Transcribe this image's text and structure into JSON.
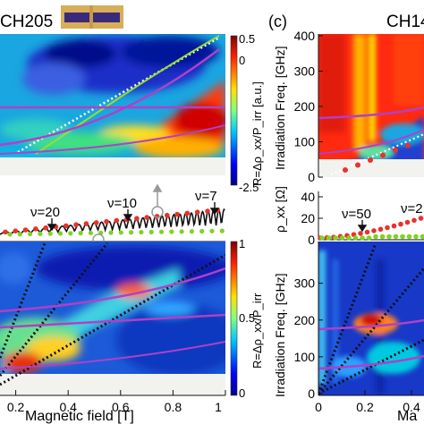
{
  "header": {
    "left_title": "CH205",
    "right_panel_label": "(c)",
    "right_title": "CH14"
  },
  "colors": {
    "guide_line_magenta": "#b040c8",
    "guide_line_green": "#9ade2a",
    "data_marker_red": "#e8322c",
    "data_marker_green": "#7ed321",
    "overlay_white_dotted": "#ffffff",
    "overlay_black_dotted": "#111111",
    "no_data_gray": "#f2f2ee"
  },
  "chart_data": [
    {
      "type": "heatmap",
      "name": "left-top-map",
      "colorbar": {
        "label": "R=Δρ_xx/P_irr [a.u.]",
        "range": [
          -2.5,
          0.5
        ],
        "ticks": [
          "0.5",
          "0",
          "-2.5"
        ],
        "colormap": "jet"
      }
    },
    {
      "type": "line",
      "name": "left-middle-oscillations",
      "series": [
        {
          "values": []
        }
      ],
      "annotations": [
        "ν=20",
        "ν=10",
        "ν=7"
      ]
    },
    {
      "type": "heatmap",
      "name": "left-bottom-map",
      "xlabel": "Magnetic field [T]",
      "x_ticks": [
        "0.2",
        "0.4",
        "0.6",
        "0.8",
        "1"
      ],
      "xlim": [
        0.14,
        1.0
      ],
      "colorbar": {
        "label": "R=Δρ_xx/P_irr",
        "range": [
          0,
          1
        ],
        "ticks": [
          "1",
          "0.5",
          "0"
        ],
        "colormap": "jet"
      }
    },
    {
      "type": "heatmap",
      "name": "right-top-map",
      "ylabel": "Irradiation Freq. [GHz]",
      "y_ticks": [
        "400",
        "300",
        "200",
        "100",
        "0"
      ],
      "ylim": [
        0,
        400
      ]
    },
    {
      "type": "line",
      "name": "right-middle-rxx",
      "ylabel": "ρ_xx [Ω]",
      "y_ticks": [
        "40",
        "20",
        "0"
      ],
      "ylim": [
        0,
        45
      ],
      "annotations": [
        "ν=50",
        "ν=2"
      ]
    },
    {
      "type": "heatmap",
      "name": "right-bottom-map",
      "ylabel": "Irradiation Freq. [GHz]",
      "xlabel": "Ma",
      "y_ticks": [
        "300",
        "200",
        "100",
        "0"
      ],
      "ylim": [
        0,
        360
      ],
      "x_ticks": [
        "0",
        "0.2",
        "0.4"
      ]
    }
  ]
}
